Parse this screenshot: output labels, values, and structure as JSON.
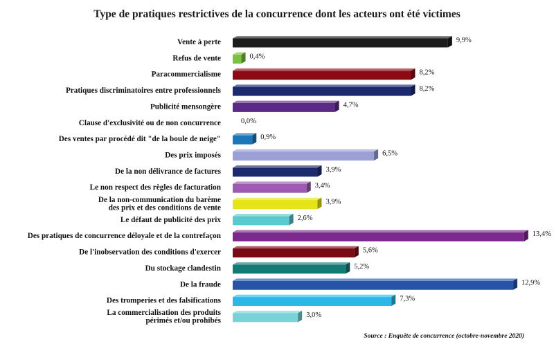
{
  "chart_data": {
    "type": "bar",
    "orientation": "horizontal",
    "title": "Type de pratiques restrictives de la concurrence dont les acteurs ont été victimes",
    "source": "Source : Enquête de concurrence (octobre-novembre 2020)",
    "value_unit": "%",
    "xlim": [
      0,
      14
    ],
    "grid": false,
    "legend": "none",
    "categories": [
      [
        "Vente à perte"
      ],
      [
        "Refus de vente"
      ],
      [
        "Paracommercialisme"
      ],
      [
        "Pratiques discriminatoires entre professionnels"
      ],
      [
        "Publicité mensongère"
      ],
      [
        "Clause d'exclusivité ou de non concurrence"
      ],
      [
        "Des ventes par procédé dit \"de la boule de neige\""
      ],
      [
        "Des prix imposés"
      ],
      [
        "De la non délivrance de factures"
      ],
      [
        "Le non respect des règles de facturation"
      ],
      [
        "De la non-communication du barème",
        "des prix et des conditions de vente"
      ],
      [
        "Le défaut de publicité des prix"
      ],
      [
        "Des pratiques de concurrence déloyale et de la contrefaçon"
      ],
      [
        "De l'inobservation des conditions d'exercer"
      ],
      [
        "Du stockage clandestin"
      ],
      [
        "De la fraude"
      ],
      [
        "Des tromperies et des falsifications"
      ],
      [
        "La commercialisation des produits",
        "périmés et/ou prohibés"
      ]
    ],
    "values": [
      9.9,
      0.4,
      8.2,
      8.2,
      4.7,
      0.0,
      0.9,
      6.5,
      3.9,
      3.4,
      3.9,
      2.6,
      13.4,
      5.6,
      5.2,
      12.9,
      7.3,
      3.0
    ],
    "value_labels": [
      "9,9%",
      "0,4%",
      "8,2%",
      "8,2%",
      "4,7%",
      "0,0%",
      "0,9%",
      "6,5%",
      "3,9%",
      "3,4%",
      "3,9%",
      "2,6%",
      "13,4%",
      "5,6%",
      "5,2%",
      "12,9%",
      "7,3%",
      "3,0%"
    ],
    "colors": [
      "#1c1c1c",
      "#7cc242",
      "#8b0a14",
      "#1e2a6e",
      "#5a2a86",
      "#999999",
      "#1a78b8",
      "#9aa0d4",
      "#1e2a6e",
      "#9c5ab0",
      "#e6e21c",
      "#5bc8d0",
      "#7a2a8a",
      "#7a0a14",
      "#137a76",
      "#2854a8",
      "#2cb8e6",
      "#7ad2d8"
    ]
  }
}
